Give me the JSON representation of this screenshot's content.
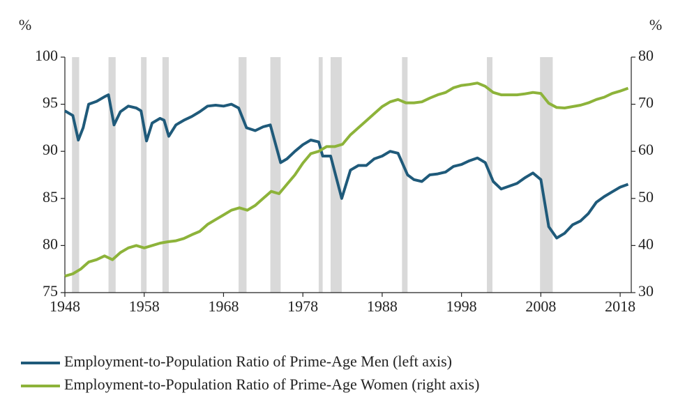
{
  "chart_data": {
    "type": "line",
    "ylabel": "%",
    "y2label": "%",
    "xlim": [
      1948,
      2019.4
    ],
    "xticks": [
      1948,
      1958,
      1968,
      1978,
      1988,
      1998,
      2008,
      2018
    ],
    "ylim": [
      75,
      100
    ],
    "yticks": [
      75,
      80,
      85,
      90,
      95,
      100
    ],
    "y2lim": [
      30,
      80
    ],
    "y2ticks": [
      30,
      40,
      50,
      60,
      70,
      80
    ],
    "recession_color": "#d9d9d9",
    "recessions": [
      [
        1948.9,
        1949.8
      ],
      [
        1953.5,
        1954.4
      ],
      [
        1957.6,
        1958.3
      ],
      [
        1960.3,
        1961.1
      ],
      [
        1969.9,
        1970.9
      ],
      [
        1973.9,
        1975.2
      ],
      [
        1980.0,
        1980.5
      ],
      [
        1981.5,
        1982.9
      ],
      [
        1990.5,
        1991.2
      ],
      [
        2001.2,
        2001.9
      ],
      [
        2007.9,
        2009.5
      ]
    ],
    "series": [
      {
        "name": "Employment-to-Population Ratio of Prime-Age Men (left axis)",
        "color": "#1f5a7a",
        "axis": "y",
        "x": [
          1948,
          1949,
          1949.7,
          1950.3,
          1951,
          1952,
          1953,
          1953.5,
          1954.2,
          1955,
          1956,
          1957,
          1957.6,
          1958.3,
          1959,
          1960,
          1960.5,
          1961.1,
          1962,
          1963,
          1964,
          1965,
          1966,
          1967,
          1968,
          1969,
          1969.9,
          1970.9,
          1972,
          1973,
          1973.9,
          1975.2,
          1976,
          1977,
          1978,
          1979,
          1980,
          1980.5,
          1981.5,
          1982.9,
          1984,
          1985,
          1986,
          1987,
          1988,
          1989,
          1990,
          1991.2,
          1992,
          1993,
          1994,
          1995,
          1996,
          1997,
          1998,
          1999,
          2000,
          2001,
          2002,
          2003,
          2004,
          2005,
          2006,
          2007,
          2008,
          2009,
          2010,
          2011,
          2012,
          2013,
          2014,
          2015,
          2016,
          2017,
          2018,
          2019
        ],
        "values": [
          94.3,
          93.8,
          91.2,
          92.5,
          95,
          95.3,
          95.8,
          96,
          92.8,
          94.2,
          94.8,
          94.6,
          94.3,
          91.1,
          93,
          93.5,
          93.3,
          91.6,
          92.8,
          93.3,
          93.7,
          94.2,
          94.8,
          94.9,
          94.8,
          95,
          94.6,
          92.5,
          92.2,
          92.6,
          92.8,
          88.8,
          89.2,
          90,
          90.7,
          91.2,
          91,
          89.5,
          89.5,
          85.0,
          88.0,
          88.5,
          88.5,
          89.2,
          89.5,
          90,
          89.8,
          87.5,
          87,
          86.8,
          87.5,
          87.6,
          87.8,
          88.4,
          88.6,
          89,
          89.3,
          88.8,
          86.8,
          86,
          86.3,
          86.6,
          87.2,
          87.7,
          87,
          82,
          80.8,
          81.3,
          82.2,
          82.6,
          83.4,
          84.6,
          85.2,
          85.7,
          86.2,
          86.5
        ]
      },
      {
        "name": "Employment-to-Population Ratio of Prime-Age Women (right axis)",
        "color": "#8db33a",
        "axis": "y2",
        "x": [
          1948,
          1949,
          1950,
          1951,
          1952,
          1953,
          1954,
          1955,
          1956,
          1957,
          1958,
          1959,
          1960,
          1961,
          1962,
          1963,
          1964,
          1965,
          1966,
          1967,
          1968,
          1969,
          1970,
          1971,
          1972,
          1973,
          1974,
          1975,
          1976,
          1977,
          1978,
          1979,
          1980,
          1981,
          1982,
          1983,
          1984,
          1985,
          1986,
          1987,
          1988,
          1989,
          1990,
          1991,
          1992,
          1993,
          1994,
          1995,
          1996,
          1997,
          1998,
          1999,
          2000,
          2001,
          2002,
          2003,
          2004,
          2005,
          2006,
          2007,
          2008,
          2009,
          2010,
          2011,
          2012,
          2013,
          2014,
          2015,
          2016,
          2017,
          2018,
          2019
        ],
        "values": [
          33.5,
          34,
          35,
          36.5,
          37,
          37.8,
          37,
          38.5,
          39.5,
          40,
          39.5,
          40,
          40.5,
          40.8,
          41,
          41.5,
          42.3,
          43,
          44.5,
          45.5,
          46.5,
          47.5,
          48,
          47.5,
          48.5,
          50,
          51.5,
          51,
          53,
          55,
          57.5,
          59.5,
          60,
          61,
          61,
          61.5,
          63.5,
          65,
          66.5,
          68,
          69.5,
          70.5,
          71,
          70.3,
          70.3,
          70.5,
          71.3,
          72,
          72.5,
          73.5,
          74,
          74.2,
          74.5,
          73.8,
          72.5,
          72,
          72,
          72,
          72.2,
          72.5,
          72.3,
          70.2,
          69.3,
          69.2,
          69.5,
          69.8,
          70.3,
          71,
          71.5,
          72.3,
          72.8,
          73.4
        ]
      }
    ]
  }
}
